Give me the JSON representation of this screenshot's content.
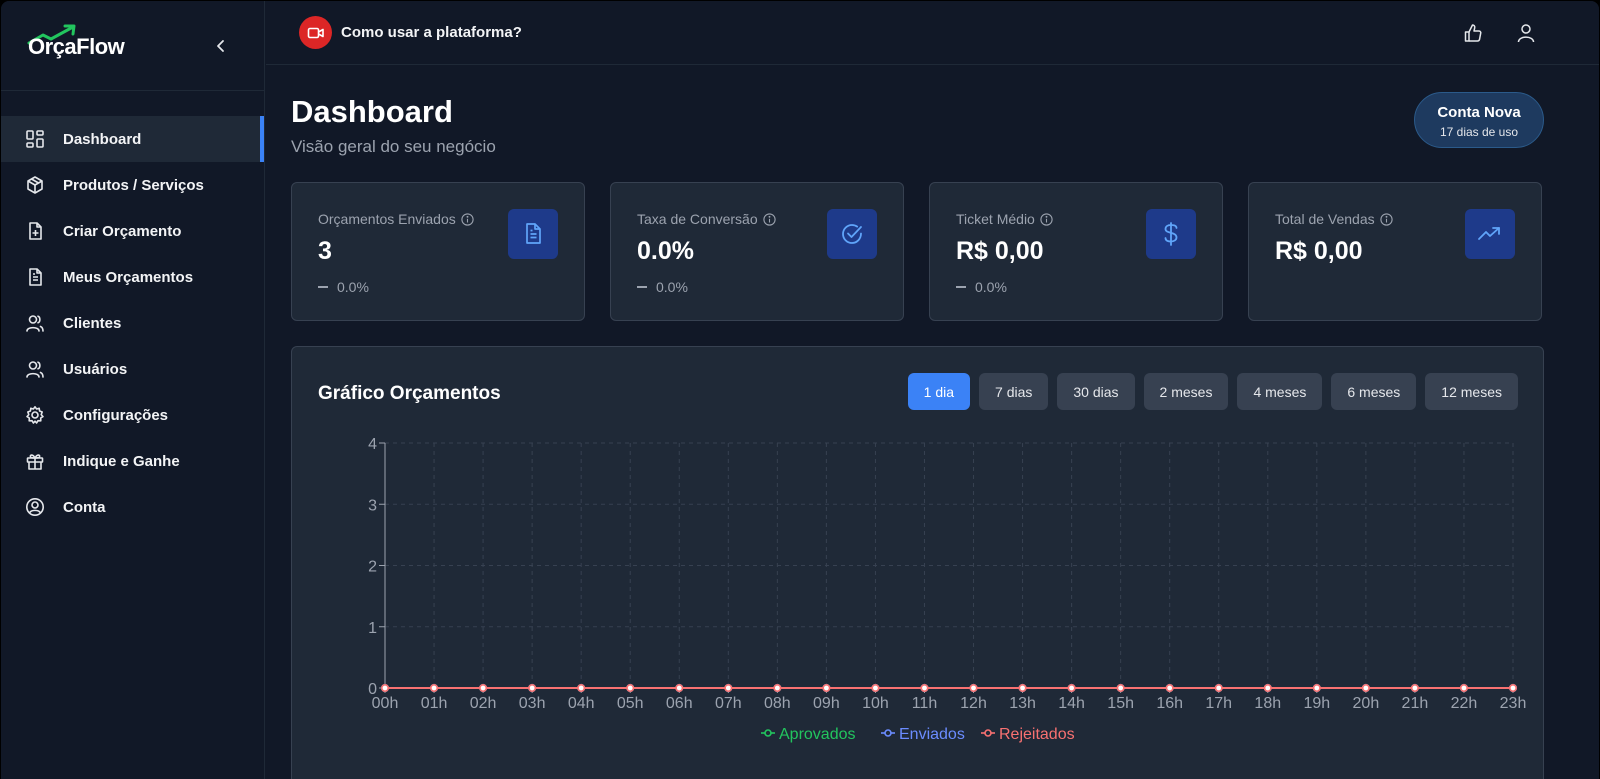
{
  "app": {
    "brand": "OrçaFlow"
  },
  "sidebar": {
    "items": [
      {
        "label": "Dashboard",
        "icon": "dashboard-grid-icon",
        "active": true
      },
      {
        "label": "Produtos / Serviços",
        "icon": "box-icon"
      },
      {
        "label": "Criar Orçamento",
        "icon": "file-plus-icon"
      },
      {
        "label": "Meus Orçamentos",
        "icon": "file-text-icon"
      },
      {
        "label": "Clientes",
        "icon": "users-icon"
      },
      {
        "label": "Usuários",
        "icon": "users-icon"
      },
      {
        "label": "Configurações",
        "icon": "gear-icon"
      },
      {
        "label": "Indique e Ganhe",
        "icon": "gift-icon"
      },
      {
        "label": "Conta",
        "icon": "user-circle-icon"
      }
    ]
  },
  "topbar": {
    "help_label": "Como usar a plataforma?"
  },
  "page": {
    "title": "Dashboard",
    "subtitle": "Visão geral do seu negócio"
  },
  "account_badge": {
    "title": "Conta Nova",
    "subtitle": "17 dias de uso"
  },
  "cards": [
    {
      "label": "Orçamentos Enviados",
      "value": "3",
      "delta": "0.0%",
      "icon": "document-icon"
    },
    {
      "label": "Taxa de Conversão",
      "value": "0.0%",
      "delta": "0.0%",
      "icon": "check-circle-icon"
    },
    {
      "label": "Ticket Médio",
      "value": "R$ 0,00",
      "delta": "0.0%",
      "icon": "dollar-icon"
    },
    {
      "label": "Total de Vendas",
      "value": "R$ 0,00",
      "delta": "",
      "icon": "trending-up-icon"
    }
  ],
  "chart": {
    "title": "Gráfico Orçamentos",
    "ranges": [
      "1 dia",
      "7 dias",
      "30 dias",
      "2 meses",
      "4 meses",
      "6 meses",
      "12 meses"
    ],
    "active_range": "1 dia"
  },
  "colors": {
    "aprovados": "#22c55e",
    "enviados": "#6b8cff",
    "rejeitados": "#f87171",
    "accent": "#3b82f6"
  },
  "chart_data": {
    "type": "line",
    "title": "Gráfico Orçamentos",
    "xlabel": "",
    "ylabel": "",
    "x": [
      "00h",
      "01h",
      "02h",
      "03h",
      "04h",
      "05h",
      "06h",
      "07h",
      "08h",
      "09h",
      "10h",
      "11h",
      "12h",
      "13h",
      "14h",
      "15h",
      "16h",
      "17h",
      "18h",
      "19h",
      "20h",
      "21h",
      "22h",
      "23h"
    ],
    "ylim": [
      0,
      4
    ],
    "yticks": [
      0,
      1,
      2,
      3,
      4
    ],
    "grid": true,
    "legend": "bottom",
    "series": [
      {
        "name": "Aprovados",
        "values": [
          0,
          0,
          0,
          0,
          0,
          0,
          0,
          0,
          0,
          0,
          0,
          0,
          0,
          0,
          0,
          0,
          0,
          0,
          0,
          0,
          0,
          0,
          0,
          0
        ]
      },
      {
        "name": "Enviados",
        "values": [
          0,
          0,
          0,
          0,
          0,
          0,
          0,
          0,
          0,
          0,
          0,
          0,
          0,
          0,
          0,
          0,
          0,
          0,
          0,
          0,
          0,
          0,
          0,
          0
        ]
      },
      {
        "name": "Rejeitados",
        "values": [
          0,
          0,
          0,
          0,
          0,
          0,
          0,
          0,
          0,
          0,
          0,
          0,
          0,
          0,
          0,
          0,
          0,
          0,
          0,
          0,
          0,
          0,
          0,
          0
        ]
      }
    ]
  }
}
